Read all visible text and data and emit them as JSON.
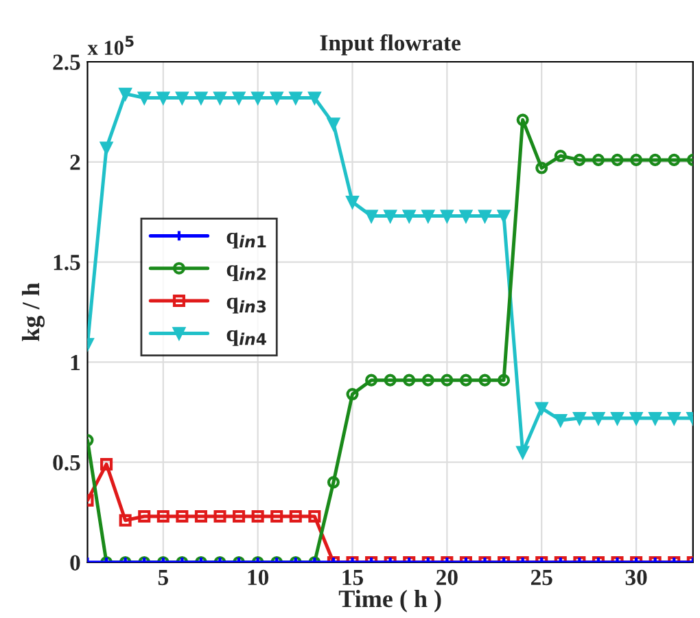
{
  "chart_data": {
    "type": "line",
    "title": "Input flowrate",
    "xlabel": "Time ( h )",
    "ylabel": "kg / h",
    "annotations": [
      "x 10$^{5}$"
    ],
    "x": [
      1,
      2,
      3,
      4,
      5,
      6,
      7,
      8,
      9,
      10,
      11,
      12,
      13,
      14,
      15,
      16,
      17,
      18,
      19,
      20,
      21,
      22,
      23,
      24,
      25,
      26,
      27,
      28,
      29,
      30,
      31,
      32,
      33
    ],
    "xlim": [
      1,
      33
    ],
    "xticks": [
      5,
      10,
      15,
      20,
      25,
      30
    ],
    "ylim": [
      0,
      2.5
    ],
    "yticks": [
      0,
      0.5,
      1,
      1.5,
      2,
      2.5
    ],
    "grid": true,
    "legend": "center left",
    "series": [
      {
        "name": "q$_{in1}$",
        "color": "#0000ff",
        "marker": "cross",
        "values": [
          0,
          0,
          0,
          0,
          0,
          0,
          0,
          0,
          0,
          0,
          0,
          0,
          0,
          0,
          0,
          0,
          0,
          0,
          0,
          0,
          0,
          0,
          0,
          0,
          0,
          0,
          0,
          0,
          0,
          0,
          0,
          0,
          0
        ]
      },
      {
        "name": "q$_{in2}$",
        "color": "#1a8a1a",
        "marker": "circle",
        "values": [
          0.61,
          0,
          0,
          0,
          0,
          0,
          0,
          0,
          0,
          0,
          0,
          0,
          0,
          0.4,
          0.84,
          0.91,
          0.91,
          0.91,
          0.91,
          0.91,
          0.91,
          0.91,
          0.91,
          2.21,
          1.97,
          2.03,
          2.01,
          2.01,
          2.01,
          2.01,
          2.01,
          2.01,
          2.01
        ]
      },
      {
        "name": "q$_{in3}$",
        "color": "#e01a1a",
        "marker": "square",
        "values": [
          0.31,
          0.49,
          0.21,
          0.23,
          0.23,
          0.23,
          0.23,
          0.23,
          0.23,
          0.23,
          0.23,
          0.23,
          0.23,
          0,
          0,
          0,
          0,
          0,
          0,
          0,
          0,
          0,
          0,
          0,
          0,
          0,
          0,
          0,
          0,
          0,
          0,
          0,
          0
        ]
      },
      {
        "name": "q$_{in4}$",
        "color": "#20c0c8",
        "marker": "triangle",
        "values": [
          1.09,
          2.07,
          2.34,
          2.32,
          2.32,
          2.32,
          2.32,
          2.32,
          2.32,
          2.32,
          2.32,
          2.32,
          2.32,
          2.19,
          1.8,
          1.73,
          1.73,
          1.73,
          1.73,
          1.73,
          1.73,
          1.73,
          1.73,
          0.55,
          0.77,
          0.71,
          0.72,
          0.72,
          0.72,
          0.72,
          0.72,
          0.72,
          0.72
        ]
      }
    ]
  }
}
